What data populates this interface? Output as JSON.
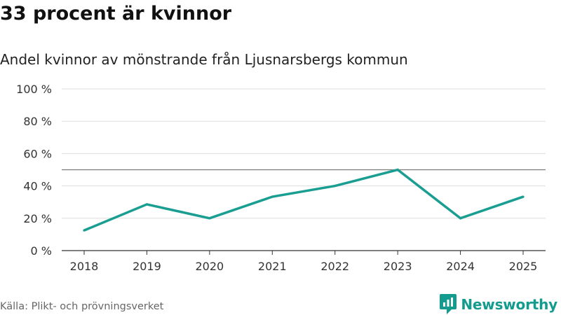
{
  "header": {
    "title": "33 procent är kvinnor",
    "subtitle": "Andel kvinnor av mönstrande från Ljusnarsbergs kommun"
  },
  "footer": {
    "source": "Källa: Plikt- och prövningsverket",
    "brand": "Newsworthy"
  },
  "colors": {
    "line": "#1a9e92",
    "reference": "#7a7a7a",
    "grid": "#dddddd",
    "brand": "#139b8e"
  },
  "icons": {
    "brand_logo": "bar-chart-speech-bubble-icon"
  },
  "chart_data": {
    "type": "line",
    "title": "33 procent är kvinnor",
    "subtitle": "Andel kvinnor av mönstrande från Ljusnarsbergs kommun",
    "xlabel": "",
    "ylabel": "",
    "categories": [
      "2018",
      "2019",
      "2020",
      "2021",
      "2022",
      "2023",
      "2024",
      "2025"
    ],
    "series": [
      {
        "name": "Andel kvinnor",
        "values": [
          12.5,
          28.6,
          20,
          33.3,
          40,
          50,
          20,
          33.3
        ]
      }
    ],
    "reference_line": 50,
    "ylim": [
      0,
      100
    ],
    "yticks": [
      0,
      20,
      40,
      60,
      80,
      100
    ],
    "ytick_labels": [
      "0 %",
      "20 %",
      "40 %",
      "60 %",
      "80 %",
      "100 %"
    ],
    "grid": true,
    "legend": "none"
  }
}
